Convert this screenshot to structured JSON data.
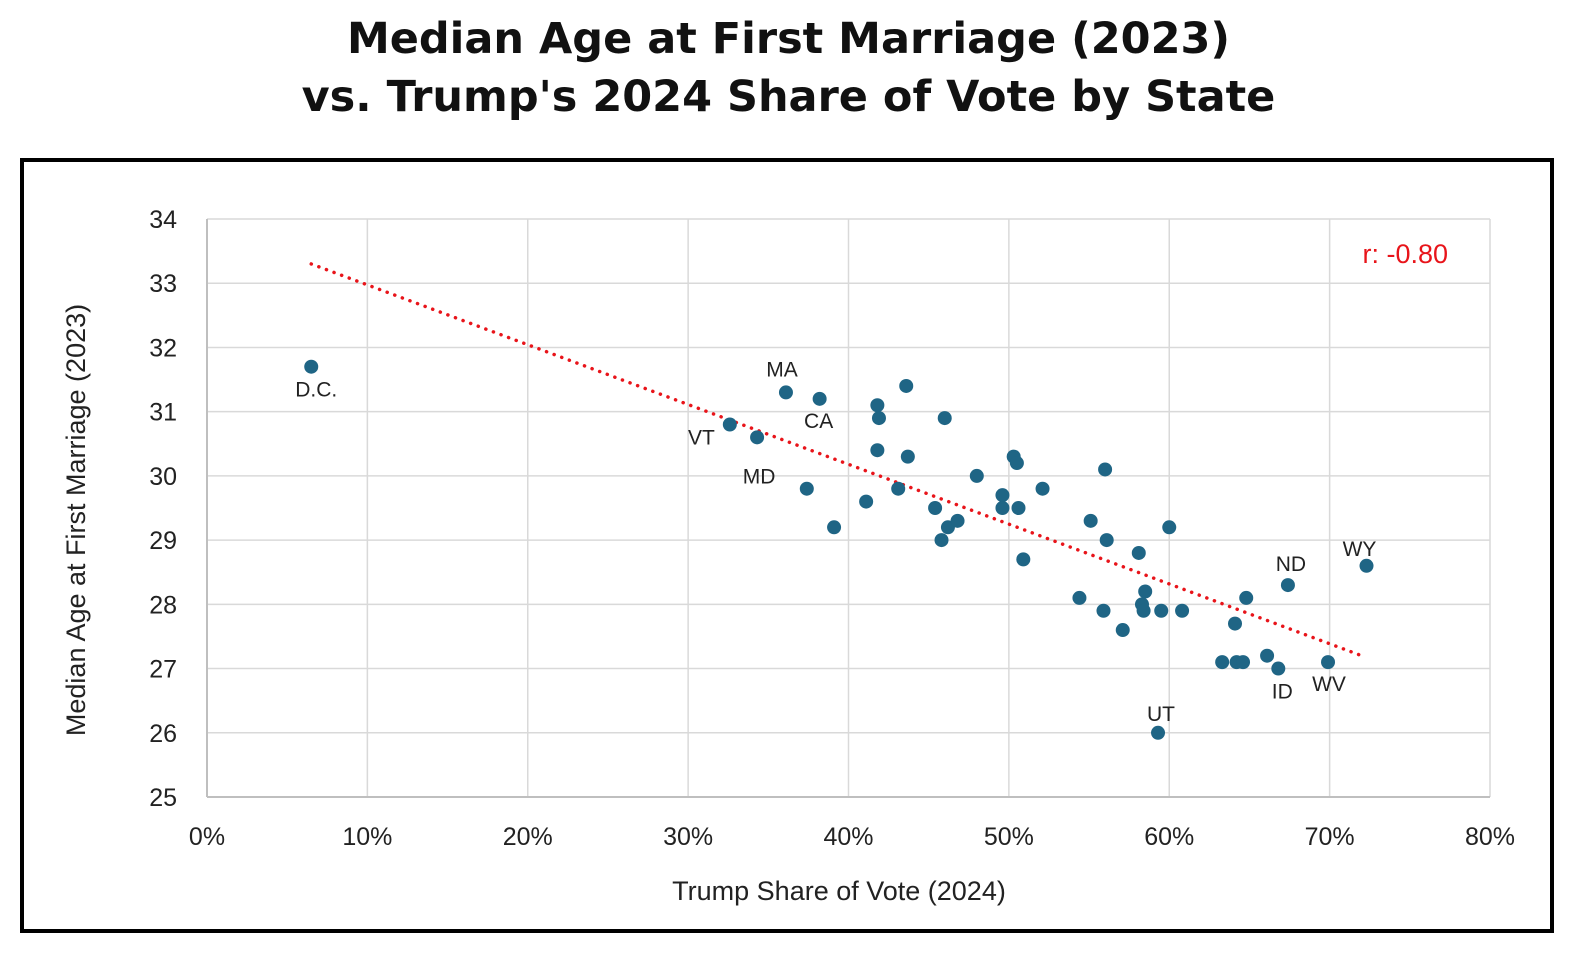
{
  "chart_data": {
    "type": "scatter",
    "title": [
      "Median Age at First Marriage (2023)",
      "vs. Trump's 2024 Share of Vote by State"
    ],
    "xlabel": "Trump Share of Vote (2024)",
    "ylabel": "Median Age at First Marriage (2023)",
    "xlim": [
      0,
      80
    ],
    "ylim": [
      25,
      34
    ],
    "x_ticks": [
      "0%",
      "10%",
      "20%",
      "30%",
      "40%",
      "50%",
      "60%",
      "70%",
      "80%"
    ],
    "y_ticks": [
      "25",
      "26",
      "27",
      "28",
      "29",
      "30",
      "31",
      "32",
      "33",
      "34"
    ],
    "grid": true,
    "point_color": "#1f6585",
    "trendline": {
      "style": "dotted",
      "color": "#e8141a",
      "x": [
        6.5,
        72
      ],
      "y": [
        33.3,
        27.2
      ]
    },
    "annotation": {
      "text": "r: -0.80",
      "color": "#e8141a",
      "position": "top-right"
    },
    "points": [
      {
        "x": 6.5,
        "y": 31.7,
        "label": "D.C."
      },
      {
        "x": 32.6,
        "y": 30.8,
        "label": "VT"
      },
      {
        "x": 34.3,
        "y": 30.6,
        "label": "MD"
      },
      {
        "x": 36.1,
        "y": 31.3,
        "label": "MA"
      },
      {
        "x": 38.2,
        "y": 31.2,
        "label": "CA"
      },
      {
        "x": 37.4,
        "y": 29.8,
        "label": ""
      },
      {
        "x": 39.1,
        "y": 29.2,
        "label": ""
      },
      {
        "x": 41.1,
        "y": 29.6,
        "label": ""
      },
      {
        "x": 41.8,
        "y": 31.1,
        "label": ""
      },
      {
        "x": 41.9,
        "y": 30.9,
        "label": ""
      },
      {
        "x": 41.8,
        "y": 30.4,
        "label": ""
      },
      {
        "x": 43.1,
        "y": 29.8,
        "label": ""
      },
      {
        "x": 43.6,
        "y": 31.4,
        "label": ""
      },
      {
        "x": 43.7,
        "y": 30.3,
        "label": ""
      },
      {
        "x": 45.4,
        "y": 29.5,
        "label": ""
      },
      {
        "x": 45.8,
        "y": 29.0,
        "label": ""
      },
      {
        "x": 46.0,
        "y": 30.9,
        "label": ""
      },
      {
        "x": 46.2,
        "y": 29.2,
        "label": ""
      },
      {
        "x": 46.8,
        "y": 29.3,
        "label": ""
      },
      {
        "x": 48.0,
        "y": 30.0,
        "label": ""
      },
      {
        "x": 49.6,
        "y": 29.7,
        "label": ""
      },
      {
        "x": 49.6,
        "y": 29.5,
        "label": ""
      },
      {
        "x": 50.3,
        "y": 30.3,
        "label": ""
      },
      {
        "x": 50.5,
        "y": 30.2,
        "label": ""
      },
      {
        "x": 50.6,
        "y": 29.5,
        "label": ""
      },
      {
        "x": 50.9,
        "y": 28.7,
        "label": ""
      },
      {
        "x": 52.1,
        "y": 29.8,
        "label": ""
      },
      {
        "x": 54.4,
        "y": 28.1,
        "label": ""
      },
      {
        "x": 55.1,
        "y": 29.3,
        "label": ""
      },
      {
        "x": 55.9,
        "y": 27.9,
        "label": ""
      },
      {
        "x": 56.0,
        "y": 30.1,
        "label": ""
      },
      {
        "x": 56.1,
        "y": 29.0,
        "label": ""
      },
      {
        "x": 57.1,
        "y": 27.6,
        "label": ""
      },
      {
        "x": 58.1,
        "y": 28.8,
        "label": ""
      },
      {
        "x": 58.3,
        "y": 28.0,
        "label": ""
      },
      {
        "x": 58.4,
        "y": 27.9,
        "label": ""
      },
      {
        "x": 58.5,
        "y": 28.2,
        "label": ""
      },
      {
        "x": 59.3,
        "y": 26.0,
        "label": "UT"
      },
      {
        "x": 59.5,
        "y": 27.9,
        "label": ""
      },
      {
        "x": 60.0,
        "y": 29.2,
        "label": ""
      },
      {
        "x": 60.8,
        "y": 27.9,
        "label": ""
      },
      {
        "x": 63.3,
        "y": 27.1,
        "label": ""
      },
      {
        "x": 64.1,
        "y": 27.7,
        "label": ""
      },
      {
        "x": 64.2,
        "y": 27.1,
        "label": ""
      },
      {
        "x": 64.6,
        "y": 27.1,
        "label": ""
      },
      {
        "x": 64.8,
        "y": 28.1,
        "label": ""
      },
      {
        "x": 66.1,
        "y": 27.2,
        "label": ""
      },
      {
        "x": 66.8,
        "y": 27.0,
        "label": "ID"
      },
      {
        "x": 67.4,
        "y": 28.3,
        "label": "ND"
      },
      {
        "x": 69.9,
        "y": 27.1,
        "label": "WV"
      },
      {
        "x": 72.3,
        "y": 28.6,
        "label": "WY"
      }
    ]
  }
}
